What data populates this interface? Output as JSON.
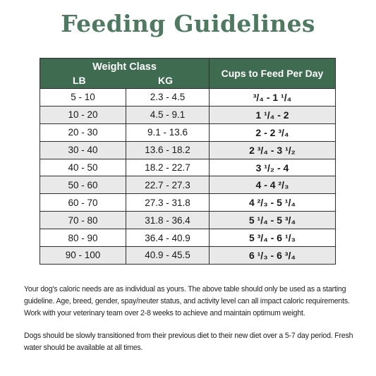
{
  "title": "Feeding Guidelines",
  "table": {
    "header": {
      "weight_class": "Weight Class",
      "lb": "LB",
      "kg": "KG",
      "cups": "Cups to Feed Per Day"
    },
    "rows": [
      {
        "lb": "5 - 10",
        "kg": "2.3 - 4.5",
        "cups": "³/₄ - 1 ¹/₄"
      },
      {
        "lb": "10 - 20",
        "kg": "4.5 - 9.1",
        "cups": "1 ¹/₄ - 2"
      },
      {
        "lb": "20 - 30",
        "kg": "9.1 - 13.6",
        "cups": "2 - 2 ³/₄"
      },
      {
        "lb": "30 - 40",
        "kg": "13.6 - 18.2",
        "cups": "2 ³/₄ - 3 ¹/₂"
      },
      {
        "lb": "40 - 50",
        "kg": "18.2 - 22.7",
        "cups": "3 ¹/₂ - 4"
      },
      {
        "lb": "50 - 60",
        "kg": "22.7 - 27.3",
        "cups": "4 - 4 ²/₃"
      },
      {
        "lb": "60 - 70",
        "kg": "27.3 - 31.8",
        "cups": "4 ²/₃ - 5 ¹/₄"
      },
      {
        "lb": "70 - 80",
        "kg": "31.8 - 36.4",
        "cups": "5 ¹/₄ - 5 ³/₄"
      },
      {
        "lb": "80 - 90",
        "kg": "36.4 - 40.9",
        "cups": "5 ³/₄ - 6 ¹/₃"
      },
      {
        "lb": "90 - 100",
        "kg": "40.9 - 45.5",
        "cups": "6 ¹/₃ - 6 ³/₄"
      }
    ]
  },
  "notes": {
    "paragraph1": "Your dog's caloric needs are as individual as yours. The above table should only be used as a starting guideline. Age, breed, gender, spay/neuter status, and activity level can all impact caloric requirements. Work with your veterinary team over 2-8 weeks to achieve and maintain optimum weight.",
    "paragraph2": "Dogs should be slowly transitioned from their previous diet to their new diet over a 5-7 day period. Fresh water should be available at all times."
  },
  "colors": {
    "title": "#4f7a61",
    "header_bg": "#3f6b51",
    "row_alt": "#e9e9e9"
  }
}
